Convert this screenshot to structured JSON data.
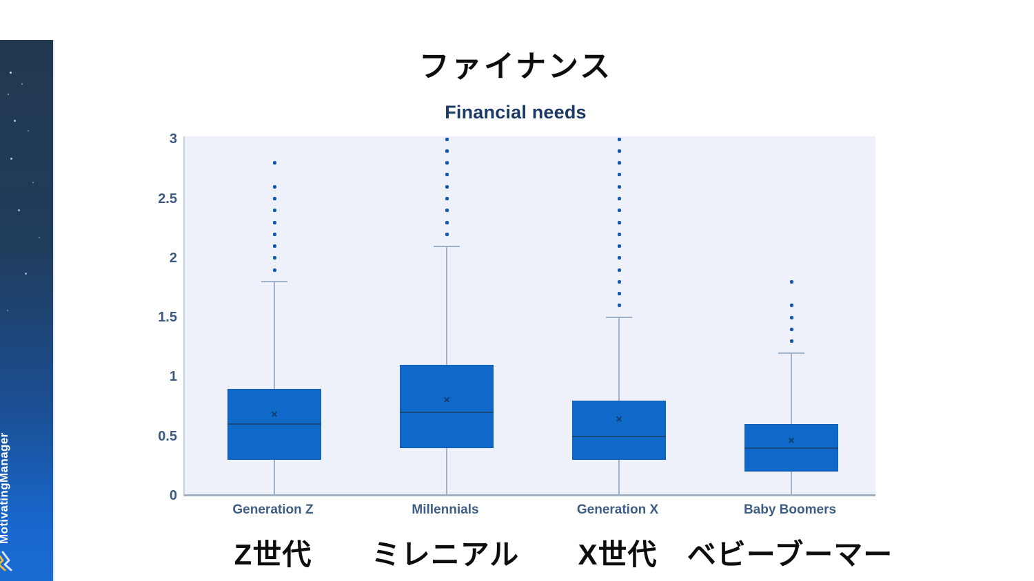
{
  "page": {
    "title_jp": "ファイナンス"
  },
  "sidebar": {
    "brand": "MotivatingManager",
    "logo_icon": "double-wave-logo",
    "colors": {
      "top": "#22384f",
      "bottom": "#1a6bd4",
      "text": "#ffffff",
      "wave_gold": "#e9bc45",
      "wave_light": "#d5e3f7"
    }
  },
  "chart_data": {
    "type": "boxplot",
    "title": "Financial needs",
    "ylim": [
      0,
      3
    ],
    "yticks": [
      3,
      2.5,
      2,
      1.5,
      1,
      0.5,
      0
    ],
    "ytick_labels": [
      "3",
      "2.5",
      "2",
      "1.5",
      "1",
      "0.5",
      "0"
    ],
    "grid": false,
    "legend": false,
    "colors": {
      "plot_bg": "#eef1f9",
      "box_fill": "#1068c8",
      "median": "#17497e",
      "whisker": "#9fb2ca",
      "outlier": "#1357ac",
      "mean_marker": "#123c68",
      "tick_label": "#3c5a80",
      "category_label": "#3e5d85",
      "title": "#1c3a66"
    },
    "mean_marker": "×",
    "series": [
      {
        "name": "Generation Z",
        "label_jp": "Z世代",
        "whisker_low": 0,
        "q1": 0.3,
        "median": 0.6,
        "q3": 0.9,
        "whisker_high": 1.8,
        "mean": 0.68,
        "outliers": [
          1.9,
          2.0,
          2.1,
          2.2,
          2.3,
          2.4,
          2.5,
          2.6,
          2.8
        ]
      },
      {
        "name": "Millennials",
        "label_jp": "ミレニアル",
        "whisker_low": 0,
        "q1": 0.4,
        "median": 0.7,
        "q3": 1.1,
        "whisker_high": 2.1,
        "mean": 0.8,
        "outliers": [
          2.2,
          2.3,
          2.4,
          2.5,
          2.6,
          2.7,
          2.8,
          2.9,
          3.0
        ]
      },
      {
        "name": "Generation X",
        "label_jp": "X世代",
        "whisker_low": 0,
        "q1": 0.3,
        "median": 0.5,
        "q3": 0.8,
        "whisker_high": 1.5,
        "mean": 0.64,
        "outliers": [
          1.6,
          1.7,
          1.8,
          1.9,
          2.0,
          2.1,
          2.2,
          2.3,
          2.4,
          2.5,
          2.6,
          2.7,
          2.8,
          2.9,
          3.0
        ]
      },
      {
        "name": "Baby Boomers",
        "label_jp": "ベビーブーマー",
        "whisker_low": 0,
        "q1": 0.2,
        "median": 0.4,
        "q3": 0.6,
        "whisker_high": 1.2,
        "mean": 0.46,
        "outliers": [
          1.3,
          1.4,
          1.5,
          1.6,
          1.8
        ]
      }
    ]
  }
}
